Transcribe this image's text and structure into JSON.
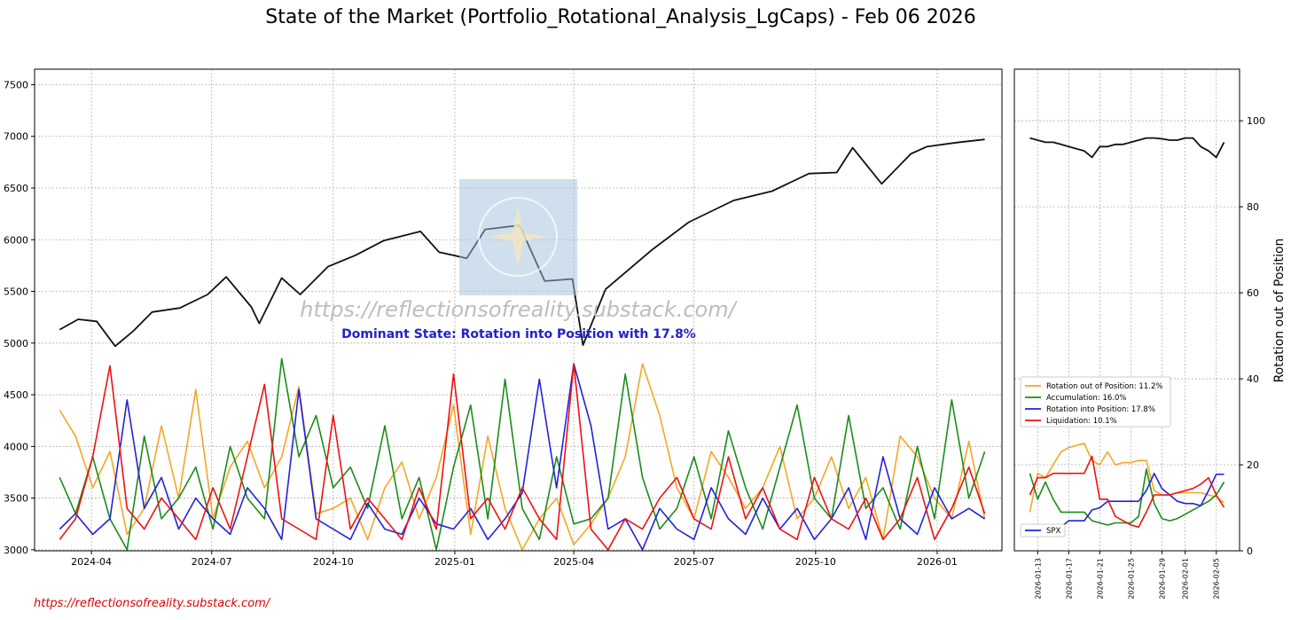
{
  "chart_data": [
    {
      "panel": "main",
      "type": "line",
      "title": "State of the Market (Portfolio_Rotational_Analysis_LgCaps) - Feb 06 2026",
      "xlabel": "",
      "ylabel": "",
      "x_tick_labels": [
        "2024-04",
        "2024-07",
        "2024-10",
        "2025-01",
        "2025-04",
        "2025-07",
        "2025-10",
        "2026-01"
      ],
      "xlim": [
        "2024-02-18",
        "2026-02-19"
      ],
      "ylim": [
        2990,
        7650
      ],
      "y_ticks": [
        3000,
        3500,
        4000,
        4500,
        5000,
        5500,
        6000,
        6500,
        7000,
        7500
      ],
      "grid": true,
      "watermark": "https://reflectionsofreality.substack.com/",
      "annotation": "Dominant State: Rotation into Position with 17.8%",
      "series": [
        {
          "name": "SPX",
          "color": "#111111",
          "x": [
            "2024-03-08",
            "2024-03-22",
            "2024-04-05",
            "2024-04-19",
            "2024-05-03",
            "2024-05-17",
            "2024-06-07",
            "2024-06-28",
            "2024-07-12",
            "2024-07-31",
            "2024-08-06",
            "2024-08-23",
            "2024-09-06",
            "2024-09-27",
            "2024-10-18",
            "2024-11-08",
            "2024-12-06",
            "2024-12-20",
            "2025-01-10",
            "2025-01-24",
            "2025-02-19",
            "2025-03-10",
            "2025-03-31",
            "2025-04-08",
            "2025-04-25",
            "2025-05-30",
            "2025-06-27",
            "2025-07-31",
            "2025-08-29",
            "2025-09-26",
            "2025-10-17",
            "2025-10-29",
            "2025-11-20",
            "2025-12-12",
            "2025-12-24",
            "2026-01-16",
            "2026-02-06"
          ],
          "values": [
            5130,
            5230,
            5210,
            4970,
            5120,
            5300,
            5340,
            5470,
            5640,
            5350,
            5190,
            5630,
            5470,
            5740,
            5850,
            5990,
            6080,
            5880,
            5820,
            6100,
            6140,
            5600,
            5620,
            4980,
            5520,
            5900,
            6170,
            6380,
            6470,
            6640,
            6650,
            6890,
            6540,
            6830,
            6900,
            6940,
            6970
          ]
        },
        {
          "name": "Rotation out of Position: 11.2%",
          "color": "#f5a623",
          "x": [
            "2024-03-08",
            "2024-03-20",
            "2024-04-02",
            "2024-04-15",
            "2024-04-28",
            "2024-05-11",
            "2024-05-24",
            "2024-06-06",
            "2024-06-19",
            "2024-07-02",
            "2024-07-15",
            "2024-07-28",
            "2024-08-10",
            "2024-08-23",
            "2024-09-05",
            "2024-09-18",
            "2024-10-01",
            "2024-10-14",
            "2024-10-27",
            "2024-11-09",
            "2024-11-22",
            "2024-12-05",
            "2024-12-18",
            "2024-12-31",
            "2025-01-13",
            "2025-01-26",
            "2025-02-08",
            "2025-02-21",
            "2025-03-06",
            "2025-03-19",
            "2025-04-01",
            "2025-04-14",
            "2025-04-27",
            "2025-05-10",
            "2025-05-23",
            "2025-06-05",
            "2025-06-18",
            "2025-07-01",
            "2025-07-14",
            "2025-07-27",
            "2025-08-09",
            "2025-08-22",
            "2025-09-04",
            "2025-09-17",
            "2025-09-30",
            "2025-10-13",
            "2025-10-26",
            "2025-11-08",
            "2025-11-21",
            "2025-12-04",
            "2025-12-17",
            "2025-12-30",
            "2026-01-12",
            "2026-01-25",
            "2026-02-06"
          ],
          "values": [
            4350,
            4100,
            3600,
            3950,
            3150,
            3400,
            4200,
            3500,
            4550,
            3300,
            3800,
            4050,
            3600,
            3900,
            4580,
            3350,
            3400,
            3500,
            3100,
            3600,
            3850,
            3300,
            3700,
            4400,
            3150,
            4100,
            3400,
            3000,
            3300,
            3500,
            3050,
            3250,
            3500,
            3900,
            4800,
            4300,
            3600,
            3300,
            3950,
            3700,
            3400,
            3600,
            4000,
            3300,
            3500,
            3900,
            3400,
            3700,
            3100,
            4100,
            3900,
            3500,
            3300,
            4050,
            3300
          ]
        },
        {
          "name": "Accumulation: 16.0%",
          "color": "#1a8c1a",
          "x": [
            "2024-03-08",
            "2024-03-20",
            "2024-04-02",
            "2024-04-15",
            "2024-04-28",
            "2024-05-11",
            "2024-05-24",
            "2024-06-06",
            "2024-06-19",
            "2024-07-02",
            "2024-07-15",
            "2024-07-28",
            "2024-08-10",
            "2024-08-23",
            "2024-09-05",
            "2024-09-18",
            "2024-10-01",
            "2024-10-14",
            "2024-10-27",
            "2024-11-09",
            "2024-11-22",
            "2024-12-05",
            "2024-12-18",
            "2024-12-31",
            "2025-01-13",
            "2025-01-26",
            "2025-02-08",
            "2025-02-21",
            "2025-03-06",
            "2025-03-19",
            "2025-04-01",
            "2025-04-14",
            "2025-04-27",
            "2025-05-10",
            "2025-05-23",
            "2025-06-05",
            "2025-06-18",
            "2025-07-01",
            "2025-07-14",
            "2025-07-27",
            "2025-08-09",
            "2025-08-22",
            "2025-09-04",
            "2025-09-17",
            "2025-09-30",
            "2025-10-13",
            "2025-10-26",
            "2025-11-08",
            "2025-11-21",
            "2025-12-04",
            "2025-12-17",
            "2025-12-30",
            "2026-01-12",
            "2026-01-25",
            "2026-02-06"
          ],
          "values": [
            3700,
            3350,
            3900,
            3300,
            3000,
            4100,
            3300,
            3500,
            3800,
            3200,
            4000,
            3500,
            3300,
            4850,
            3900,
            4300,
            3600,
            3800,
            3400,
            4200,
            3300,
            3700,
            3000,
            3800,
            4400,
            3300,
            4650,
            3400,
            3100,
            3900,
            3250,
            3300,
            3500,
            4700,
            3700,
            3200,
            3400,
            3900,
            3300,
            4150,
            3600,
            3200,
            3800,
            4400,
            3500,
            3300,
            4300,
            3400,
            3600,
            3200,
            4000,
            3300,
            4450,
            3500,
            3950
          ]
        },
        {
          "name": "Rotation into Position: 17.8%",
          "color": "#2222dd",
          "x": [
            "2024-03-08",
            "2024-03-20",
            "2024-04-02",
            "2024-04-15",
            "2024-04-28",
            "2024-05-11",
            "2024-05-24",
            "2024-06-06",
            "2024-06-19",
            "2024-07-02",
            "2024-07-15",
            "2024-07-28",
            "2024-08-10",
            "2024-08-23",
            "2024-09-05",
            "2024-09-18",
            "2024-10-01",
            "2024-10-14",
            "2024-10-27",
            "2024-11-09",
            "2024-11-22",
            "2024-12-05",
            "2024-12-18",
            "2024-12-31",
            "2025-01-13",
            "2025-01-26",
            "2025-02-08",
            "2025-02-21",
            "2025-03-06",
            "2025-03-19",
            "2025-04-01",
            "2025-04-14",
            "2025-04-27",
            "2025-05-10",
            "2025-05-23",
            "2025-06-05",
            "2025-06-18",
            "2025-07-01",
            "2025-07-14",
            "2025-07-27",
            "2025-08-09",
            "2025-08-22",
            "2025-09-04",
            "2025-09-17",
            "2025-09-30",
            "2025-10-13",
            "2025-10-26",
            "2025-11-08",
            "2025-11-21",
            "2025-12-04",
            "2025-12-17",
            "2025-12-30",
            "2026-01-12",
            "2026-01-25",
            "2026-02-06"
          ],
          "values": [
            3200,
            3350,
            3150,
            3300,
            4450,
            3400,
            3700,
            3200,
            3500,
            3300,
            3150,
            3600,
            3400,
            3100,
            4550,
            3300,
            3200,
            3100,
            3450,
            3200,
            3150,
            3500,
            3250,
            3200,
            3400,
            3100,
            3300,
            3550,
            4650,
            3600,
            4800,
            4200,
            3200,
            3300,
            3000,
            3400,
            3200,
            3100,
            3600,
            3300,
            3150,
            3500,
            3200,
            3400,
            3100,
            3300,
            3600,
            3100,
            3900,
            3300,
            3150,
            3600,
            3300,
            3400,
            3300
          ]
        },
        {
          "name": "Liquidation: 10.1%",
          "color": "#ee1111",
          "x": [
            "2024-03-08",
            "2024-03-20",
            "2024-04-02",
            "2024-04-15",
            "2024-04-28",
            "2024-05-11",
            "2024-05-24",
            "2024-06-06",
            "2024-06-19",
            "2024-07-02",
            "2024-07-15",
            "2024-07-28",
            "2024-08-10",
            "2024-08-23",
            "2024-09-05",
            "2024-09-18",
            "2024-10-01",
            "2024-10-14",
            "2024-10-27",
            "2024-11-09",
            "2024-11-22",
            "2024-12-05",
            "2024-12-18",
            "2024-12-31",
            "2025-01-13",
            "2025-01-26",
            "2025-02-08",
            "2025-02-21",
            "2025-03-06",
            "2025-03-19",
            "2025-04-01",
            "2025-04-14",
            "2025-04-27",
            "2025-05-10",
            "2025-05-23",
            "2025-06-05",
            "2025-06-18",
            "2025-07-01",
            "2025-07-14",
            "2025-07-27",
            "2025-08-09",
            "2025-08-22",
            "2025-09-04",
            "2025-09-17",
            "2025-09-30",
            "2025-10-13",
            "2025-10-26",
            "2025-11-08",
            "2025-11-21",
            "2025-12-04",
            "2025-12-17",
            "2025-12-30",
            "2026-01-12",
            "2026-01-25",
            "2026-02-06"
          ],
          "values": [
            3100,
            3300,
            3900,
            4780,
            3400,
            3200,
            3500,
            3300,
            3100,
            3600,
            3200,
            3900,
            4600,
            3300,
            3200,
            3100,
            4300,
            3200,
            3500,
            3300,
            3100,
            3600,
            3200,
            4700,
            3300,
            3500,
            3200,
            3600,
            3300,
            3100,
            4800,
            3200,
            3000,
            3300,
            3200,
            3500,
            3700,
            3300,
            3200,
            3900,
            3300,
            3600,
            3200,
            3100,
            3700,
            3300,
            3200,
            3500,
            3100,
            3300,
            3700,
            3100,
            3400,
            3800,
            3350
          ]
        }
      ]
    },
    {
      "panel": "zoom",
      "type": "line",
      "xlabel": "",
      "ylabel": "Rotation out of Position",
      "x_tick_labels": [
        "2026-01-13",
        "2026-01-17",
        "2026-01-21",
        "2026-01-25",
        "2026-01-29",
        "2026-02-01",
        "2026-02-05"
      ],
      "xlim": [
        "2026-01-10",
        "2026-02-08"
      ],
      "ylim": [
        0,
        112
      ],
      "y_ticks": [
        0,
        20,
        40,
        60,
        80,
        100
      ],
      "y_axis_side": "right",
      "grid": true,
      "legend": {
        "placement": "center-left",
        "entries": [
          "Rotation out of Position: 11.2%",
          "Accumulation: 16.0%",
          "Rotation into Position: 17.8%",
          "Liquidation: 10.1%"
        ]
      },
      "secondary_legend": {
        "placement": "lower-left",
        "entries": [
          "SPX"
        ]
      },
      "x": [
        "2026-01-12",
        "2026-01-13",
        "2026-01-14",
        "2026-01-15",
        "2026-01-16",
        "2026-01-17",
        "2026-01-18",
        "2026-01-19",
        "2026-01-20",
        "2026-01-21",
        "2026-01-22",
        "2026-01-23",
        "2026-01-24",
        "2026-01-25",
        "2026-01-26",
        "2026-01-27",
        "2026-01-28",
        "2026-01-29",
        "2026-01-30",
        "2026-01-31",
        "2026-02-01",
        "2026-02-02",
        "2026-02-03",
        "2026-02-04",
        "2026-02-05",
        "2026-02-06"
      ],
      "series": [
        {
          "name": "SPX",
          "color": "#111111",
          "values": [
            96,
            95.5,
            95,
            95,
            94.5,
            94,
            93.5,
            93,
            91.5,
            94,
            94,
            94.5,
            94.5,
            95,
            95.5,
            96,
            96,
            95.8,
            95.5,
            95.5,
            96,
            96,
            94,
            93,
            91.5,
            95
          ]
        },
        {
          "name": "Rotation out of Position: 11.2%",
          "color": "#f5a623",
          "values": [
            9,
            18,
            17,
            20,
            23,
            24,
            24.5,
            25,
            21,
            20,
            23,
            20,
            20.5,
            20.5,
            21,
            21,
            14,
            13,
            13,
            13.5,
            13.5,
            13.5,
            13.5,
            13,
            12.5,
            11.2
          ]
        },
        {
          "name": "Accumulation: 16.0%",
          "color": "#1a8c1a",
          "values": [
            18,
            12,
            16,
            12,
            9,
            9,
            9,
            9,
            7,
            6.5,
            6,
            6.5,
            6.5,
            6.5,
            8,
            19,
            11,
            7.5,
            7,
            7.5,
            8.5,
            9.5,
            10.5,
            11.5,
            13,
            16
          ]
        },
        {
          "name": "Rotation into Position: 17.8%",
          "color": "#2222dd",
          "values": [
            5,
            5.5,
            5.5,
            5,
            5.5,
            7,
            7,
            7,
            9.5,
            10,
            11.5,
            11.5,
            11.5,
            11.5,
            11.5,
            14,
            18,
            14.5,
            13,
            11.5,
            11,
            11,
            10.5,
            14,
            17.8,
            17.8
          ]
        },
        {
          "name": "Liquidation: 10.1%",
          "color": "#ee1111",
          "values": [
            13,
            17,
            17,
            18,
            18,
            18,
            18,
            18,
            22,
            12,
            12,
            8,
            7,
            6,
            5.5,
            9,
            13,
            13,
            13,
            13.5,
            14,
            14.5,
            15.5,
            17,
            13,
            10.1
          ]
        }
      ]
    }
  ],
  "footer_link": "https://reflectionsofreality.substack.com/"
}
